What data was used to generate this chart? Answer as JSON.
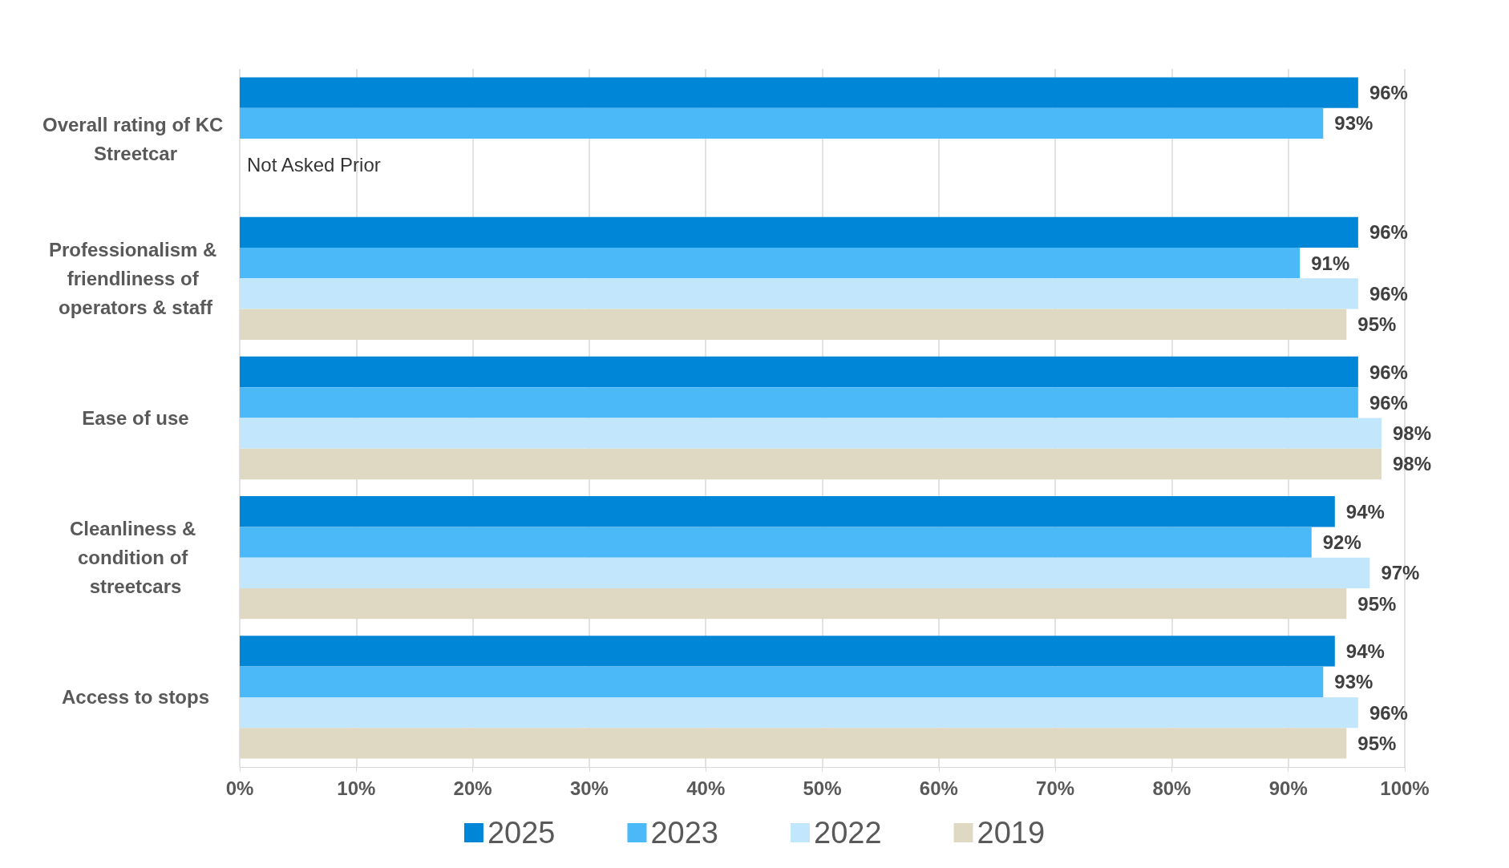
{
  "chart_data": {
    "type": "bar",
    "orientation": "horizontal",
    "categories": [
      "Overall rating of KC Streetcar",
      "Professionalism & friendliness of operators & staff",
      "Ease of use",
      "Cleanliness & condition of streetcars",
      "Access to stops"
    ],
    "series": [
      {
        "name": "2025",
        "color": "#0086d6",
        "values": [
          96,
          96,
          96,
          94,
          94
        ],
        "value_labels": [
          "96%",
          "96%",
          "96%",
          "94%",
          "94%"
        ]
      },
      {
        "name": "2023",
        "color": "#4bb8f8",
        "values": [
          93,
          91,
          96,
          92,
          93
        ],
        "value_labels": [
          "93%",
          "91%",
          "96%",
          "92%",
          "93%"
        ]
      },
      {
        "name": "2022",
        "color": "#c2e6fc",
        "values": [
          null,
          96,
          98,
          97,
          96
        ],
        "value_labels": [
          null,
          "96%",
          "98%",
          "97%",
          "96%"
        ]
      },
      {
        "name": "2019",
        "color": "#dfd9c4",
        "values": [
          null,
          95,
          98,
          95,
          95
        ],
        "value_labels": [
          null,
          "95%",
          "98%",
          "95%",
          "95%"
        ]
      }
    ],
    "xlim": [
      0,
      100
    ],
    "xticks": [
      {
        "value": 0,
        "label": "0%"
      },
      {
        "value": 10,
        "label": "10%"
      },
      {
        "value": 20,
        "label": "20%"
      },
      {
        "value": 30,
        "label": "30%"
      },
      {
        "value": 40,
        "label": "40%"
      },
      {
        "value": 50,
        "label": "50%"
      },
      {
        "value": 60,
        "label": "60%"
      },
      {
        "value": 70,
        "label": "70%"
      },
      {
        "value": 80,
        "label": "80%"
      },
      {
        "value": 90,
        "label": "90%"
      },
      {
        "value": 100,
        "label": "100%"
      }
    ],
    "annotations": [
      {
        "text": "Not Asked Prior",
        "x": 0,
        "y": "Overall rating of KC Streetcar"
      }
    ],
    "grid": "x",
    "legend": "bottom"
  }
}
